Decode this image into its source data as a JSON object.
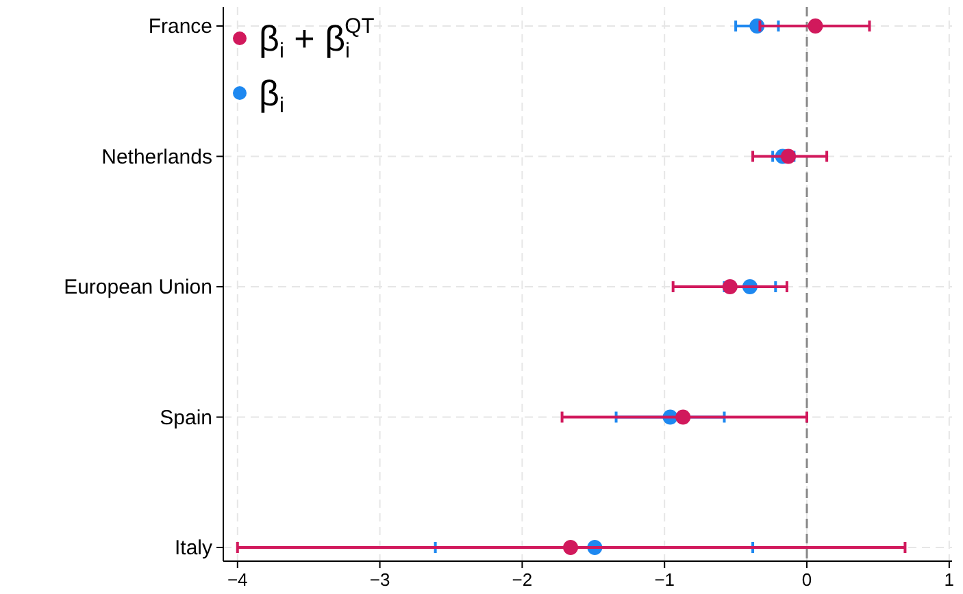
{
  "chart_data": {
    "type": "scatter",
    "orientation": "horizontal",
    "categories": [
      "France",
      "Netherlands",
      "European Union",
      "Spain",
      "Italy"
    ],
    "xlim": [
      -4.1,
      1.02
    ],
    "xticks": [
      {
        "value": -4,
        "label": "−4"
      },
      {
        "value": -3,
        "label": "−3"
      },
      {
        "value": -2,
        "label": "−2"
      },
      {
        "value": -1,
        "label": "−1"
      },
      0,
      1
    ],
    "grid": true,
    "legend": "top left",
    "marker": "circle",
    "ref_lines": [
      {
        "axis": "x",
        "value": 0,
        "color": "#888888",
        "line_style": "dashed"
      }
    ],
    "series": [
      {
        "name": "β$_{i}$ + β$_{i}$$^{QT}$",
        "color": "#d1195c",
        "values": [
          0.06,
          -0.13,
          -0.54,
          -0.87,
          -1.66
        ],
        "errors": [
          [
            -0.33,
            0.44
          ],
          [
            -0.38,
            0.14
          ],
          [
            -0.94,
            -0.14
          ],
          [
            -1.72,
            0.0
          ],
          [
            -4.0,
            0.69
          ]
        ]
      },
      {
        "name": "β$_{i}$",
        "color": "#1e88f0",
        "values": [
          -0.35,
          -0.17,
          -0.4,
          -0.96,
          -1.49
        ],
        "errors": [
          [
            -0.5,
            -0.2
          ],
          [
            -0.24,
            -0.09
          ],
          [
            -0.58,
            -0.22
          ],
          [
            -1.34,
            -0.58
          ],
          [
            -2.61,
            -0.38
          ]
        ]
      }
    ]
  }
}
